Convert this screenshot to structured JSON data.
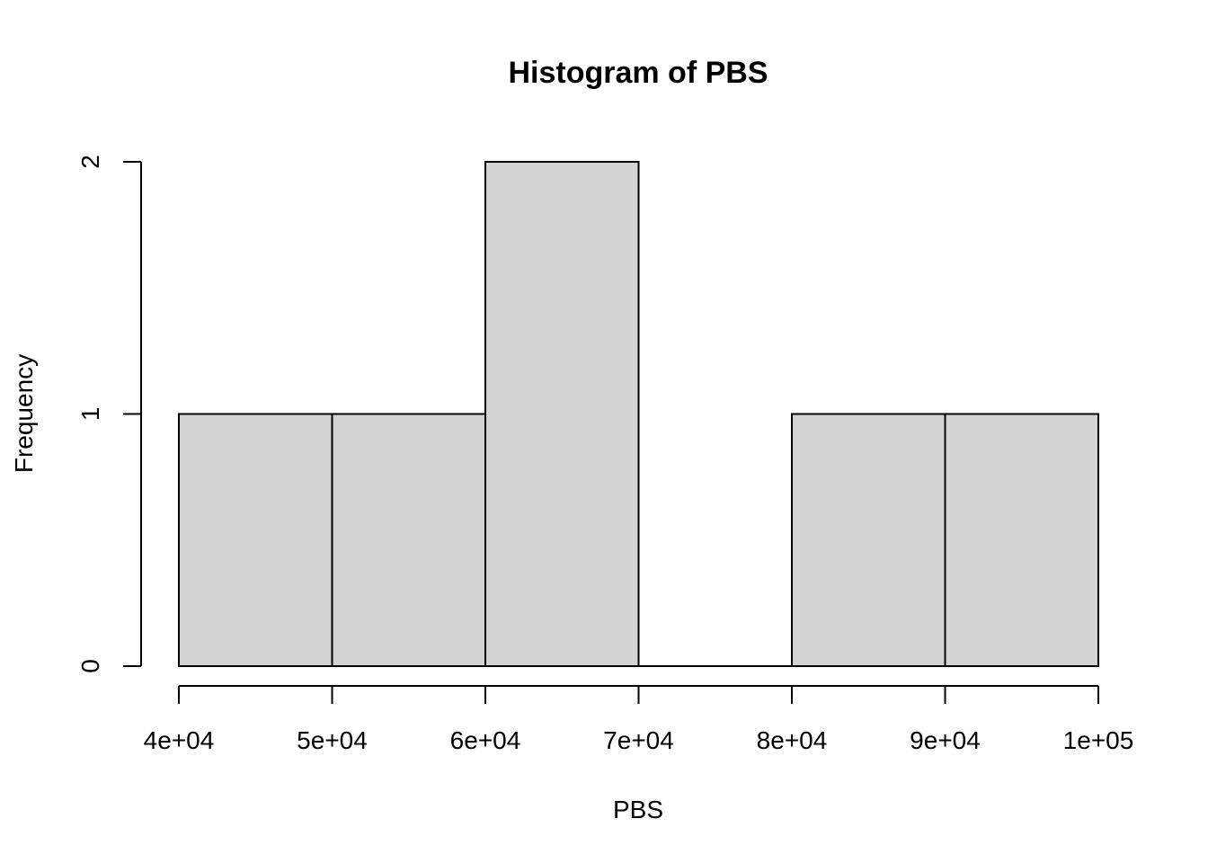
{
  "chart_data": {
    "type": "bar",
    "title": "Histogram of PBS",
    "xlabel": "PBS",
    "ylabel": "Frequency",
    "bins": [
      {
        "from": 40000,
        "to": 50000,
        "count": 1
      },
      {
        "from": 50000,
        "to": 60000,
        "count": 1
      },
      {
        "from": 60000,
        "to": 70000,
        "count": 2
      },
      {
        "from": 70000,
        "to": 80000,
        "count": 0
      },
      {
        "from": 80000,
        "to": 90000,
        "count": 1
      },
      {
        "from": 90000,
        "to": 100000,
        "count": 1
      }
    ],
    "xlim": [
      40000,
      100000
    ],
    "ylim": [
      0,
      2
    ],
    "x_ticks": [
      40000,
      50000,
      60000,
      70000,
      80000,
      90000,
      100000
    ],
    "x_tick_labels": [
      "4e+04",
      "5e+04",
      "6e+04",
      "7e+04",
      "8e+04",
      "9e+04",
      "1e+05"
    ],
    "y_ticks": [
      0,
      1,
      2
    ],
    "y_tick_labels": [
      "0",
      "1",
      "2"
    ],
    "grid": false,
    "bar_fill": "#d3d3d3"
  }
}
